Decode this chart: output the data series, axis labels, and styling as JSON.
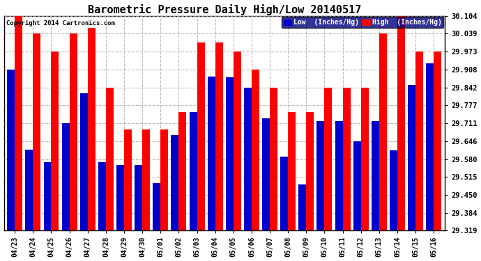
{
  "title": "Barometric Pressure Daily High/Low 20140517",
  "copyright": "Copyright 2014 Cartronics.com",
  "legend_low": "Low  (Inches/Hg)",
  "legend_high": "High  (Inches/Hg)",
  "dates": [
    "04/23",
    "04/24",
    "04/25",
    "04/26",
    "04/27",
    "04/28",
    "04/29",
    "04/30",
    "05/01",
    "05/02",
    "05/03",
    "05/04",
    "05/05",
    "05/06",
    "05/07",
    "05/08",
    "05/09",
    "05/10",
    "05/11",
    "05/12",
    "05/13",
    "05/14",
    "05/15",
    "05/16"
  ],
  "low": [
    29.908,
    29.614,
    29.569,
    29.711,
    29.82,
    29.569,
    29.558,
    29.558,
    29.492,
    29.667,
    29.753,
    29.882,
    29.88,
    29.84,
    29.73,
    29.59,
    29.488,
    29.72,
    29.72,
    29.646,
    29.72,
    29.613,
    29.851,
    29.93
  ],
  "high": [
    30.104,
    30.039,
    29.973,
    30.039,
    30.06,
    29.842,
    29.688,
    29.688,
    29.688,
    29.753,
    30.006,
    30.006,
    29.973,
    29.908,
    29.842,
    29.753,
    29.753,
    29.842,
    29.842,
    29.842,
    30.039,
    30.104,
    29.973,
    29.973
  ],
  "ymin": 29.319,
  "ymax": 30.104,
  "yticks": [
    29.319,
    29.384,
    29.45,
    29.515,
    29.58,
    29.646,
    29.711,
    29.777,
    29.842,
    29.908,
    29.973,
    30.039,
    30.104
  ],
  "low_color": "#0000cc",
  "high_color": "#ff0000",
  "bg_color": "#ffffff",
  "grid_color": "#aaaaaa",
  "title_fontsize": 11,
  "bar_width": 0.42,
  "figwidth": 6.9,
  "figheight": 3.75,
  "dpi": 100
}
